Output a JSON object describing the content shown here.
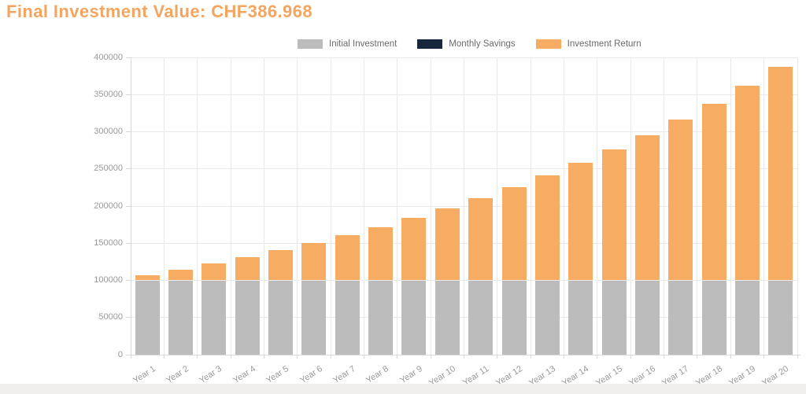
{
  "page": {
    "title": "Final Investment Value: CHF386.968"
  },
  "colors": {
    "title": "#F4A55F",
    "initial_investment": "#BDBCBC",
    "monthly_savings": "#16293C",
    "investment_return": "#F7AC63",
    "gridline": "#E9E9E9",
    "axis_line": "#D8D8D8",
    "axis_text": "#999999",
    "legend_text": "#6A6A6A"
  },
  "chart_data": {
    "type": "bar",
    "stacked": true,
    "title": "Final Investment Value: CHF386.968",
    "xlabel": "",
    "ylabel": "",
    "ylim": [
      0,
      400000
    ],
    "yticks": [
      "0",
      "50000",
      "100000",
      "150000",
      "200000",
      "250000",
      "300000",
      "350000",
      "400000"
    ],
    "grid": true,
    "legend_position": "top",
    "x_label_rotation": -33,
    "categories": [
      "Year 1",
      "Year 2",
      "Year 3",
      "Year 4",
      "Year 5",
      "Year 6",
      "Year 7",
      "Year 8",
      "Year 9",
      "Year 10",
      "Year 11",
      "Year 12",
      "Year 13",
      "Year 14",
      "Year 15",
      "Year 16",
      "Year 17",
      "Year 18",
      "Year 19",
      "Year 20"
    ],
    "series": [
      {
        "name": "Initial Investment",
        "color": "#BDBCBC",
        "values": [
          100000,
          100000,
          100000,
          100000,
          100000,
          100000,
          100000,
          100000,
          100000,
          100000,
          100000,
          100000,
          100000,
          100000,
          100000,
          100000,
          100000,
          100000,
          100000,
          100000
        ]
      },
      {
        "name": "Monthly Savings",
        "color": "#16293C",
        "values": [
          0,
          0,
          0,
          0,
          0,
          0,
          0,
          0,
          0,
          0,
          0,
          0,
          0,
          0,
          0,
          0,
          0,
          0,
          0,
          0
        ]
      },
      {
        "name": "Investment Return",
        "color": "#F7AC63",
        "values": [
          7000,
          14490,
          22504,
          31080,
          40255,
          50073,
          60578,
          71819,
          83846,
          96715,
          110485,
          125219,
          140985,
          157853,
          175903,
          195216,
          215882,
          237993,
          261653,
          286968
        ]
      }
    ]
  }
}
